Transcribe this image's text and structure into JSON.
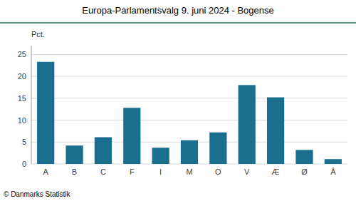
{
  "chart_data": {
    "type": "bar",
    "title": "Europa-Parlamentsvalg 9. juni 2024 - Bogense",
    "ylabel": "Pct.",
    "footer": "© Danmarks Statistik",
    "categories": [
      "A",
      "B",
      "C",
      "F",
      "I",
      "M",
      "O",
      "V",
      "Æ",
      "Ø",
      "Å"
    ],
    "values": [
      23.3,
      4.2,
      6.1,
      12.8,
      3.7,
      5.4,
      7.2,
      18.0,
      15.2,
      3.2,
      1.1
    ],
    "color": "#1a6e8e",
    "ylim": [
      0,
      27
    ],
    "yticks": [
      0,
      5,
      10,
      15,
      20,
      25
    ],
    "grid": true
  }
}
